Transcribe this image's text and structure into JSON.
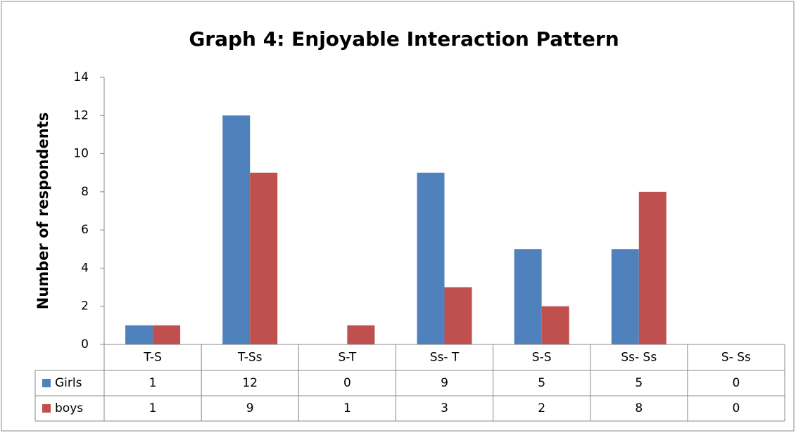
{
  "chart_data": {
    "type": "bar",
    "title": "Graph 4: Enjoyable Interaction Pattern",
    "y_label": "Number of respondents",
    "categories": [
      "T-S",
      "T-Ss",
      "S-T",
      "Ss- T",
      "S-S",
      "Ss- Ss",
      "S- Ss"
    ],
    "series": [
      {
        "name": "Girls",
        "color": "#4f81bd",
        "values": [
          1,
          12,
          0,
          9,
          5,
          5,
          0
        ]
      },
      {
        "name": "boys",
        "color": "#c0504d",
        "values": [
          1,
          9,
          1,
          3,
          2,
          8,
          0
        ]
      }
    ],
    "ylim": [
      0,
      14
    ],
    "yticks": [
      0,
      2,
      4,
      6,
      8,
      10,
      12,
      14
    ],
    "grid": false,
    "data_table": true
  }
}
